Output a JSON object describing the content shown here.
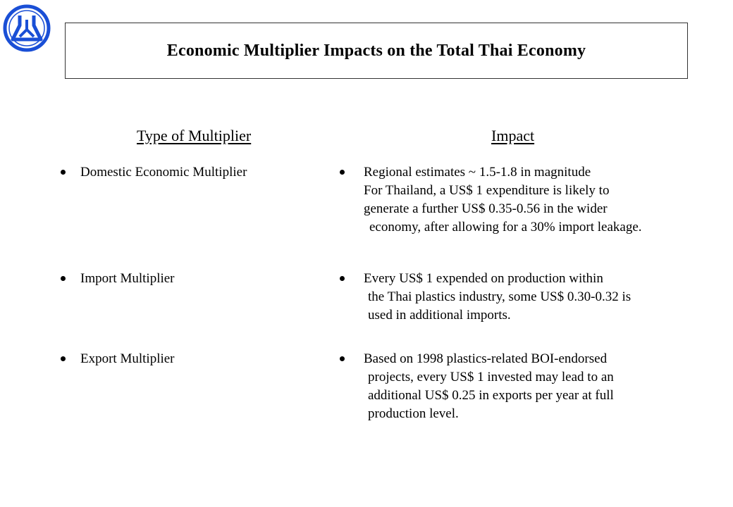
{
  "logo": {
    "icon": "thai-plastics-logo-icon",
    "color": "#1a4fd6"
  },
  "title": "Economic Multiplier Impacts on the Total Thai Economy",
  "headers": {
    "type": "Type of Multiplier",
    "impact": "Impact"
  },
  "rows": [
    {
      "type": "Domestic Economic Multiplier",
      "impact_lines": [
        "Regional estimates ~ 1.5-1.8 in magnitude",
        "For Thailand, a US$ 1 expenditure is likely to",
        "generate a further US$ 0.35-0.56 in the wider",
        "economy, after allowing for a 30% import leakage."
      ]
    },
    {
      "type": "Import Multiplier",
      "impact_lines": [
        "Every US$ 1 expended on production within",
        "the Thai plastics industry, some US$ 0.30-0.32 is",
        "used in additional imports."
      ]
    },
    {
      "type": "Export Multiplier",
      "impact_lines": [
        "Based on 1998 plastics-related BOI-endorsed",
        "projects, every US$ 1 invested may lead to an",
        "additional US$ 0.25 in exports per year at full",
        "production level."
      ]
    }
  ]
}
